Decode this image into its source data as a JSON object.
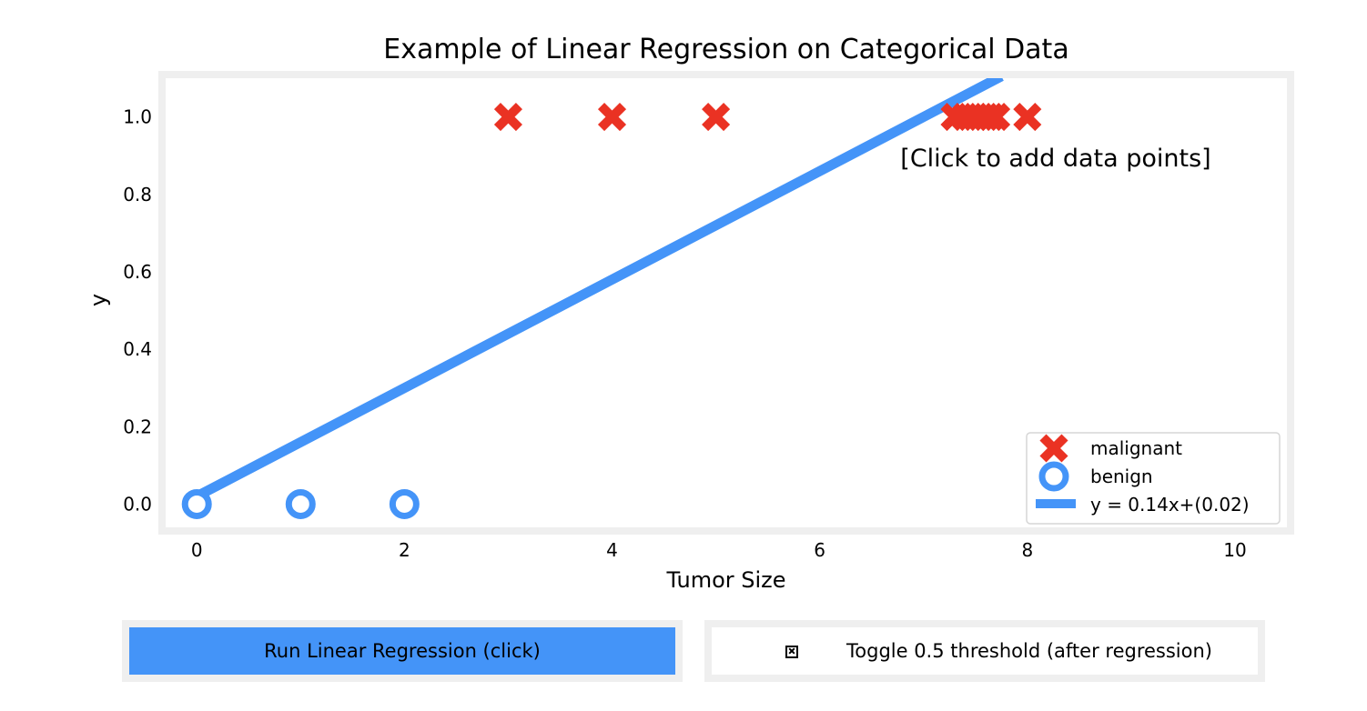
{
  "colors": {
    "malignant": "#ea3223",
    "benign": "#4494f8",
    "line": "#4494f8",
    "frame": "#efefef",
    "button_run_bg": "#4494f8"
  },
  "chart_data": {
    "type": "scatter",
    "title": "Example of Linear Regression on Categorical Data",
    "xlabel": "Tumor Size",
    "ylabel": "y",
    "xlim": [
      -0.3,
      10.5
    ],
    "ylim": [
      -0.06,
      1.1
    ],
    "xticks": [
      0,
      2,
      4,
      6,
      8,
      10
    ],
    "yticks": [
      0.0,
      0.2,
      0.4,
      0.6,
      0.8,
      1.0
    ],
    "xtick_labels": [
      "0",
      "2",
      "4",
      "6",
      "8",
      "10"
    ],
    "ytick_labels": [
      "0.0",
      "0.2",
      "0.4",
      "0.6",
      "0.8",
      "1.0"
    ],
    "grid": false,
    "legend_position": "lower-right",
    "annotation": "[Click to add data points]",
    "series": [
      {
        "name": "malignant",
        "marker": "x",
        "x": [
          3,
          4,
          5,
          7.3,
          7.4,
          7.5,
          7.6,
          7.65,
          7.7,
          8
        ],
        "y": [
          1,
          1,
          1,
          1,
          1,
          1,
          1,
          1,
          1,
          1
        ]
      },
      {
        "name": "benign",
        "marker": "o",
        "x": [
          0,
          1,
          2
        ],
        "y": [
          0,
          0,
          0
        ]
      },
      {
        "name": "y = 0.14x+(0.02)",
        "marker": "line",
        "slope": 0.14,
        "intercept": 0.02,
        "x": [
          0,
          7.75
        ],
        "y": [
          0.02,
          1.105
        ]
      }
    ]
  },
  "buttons": {
    "run_label": "Run Linear Regression (click)",
    "toggle_label": "Toggle 0.5 threshold (after regression)"
  }
}
